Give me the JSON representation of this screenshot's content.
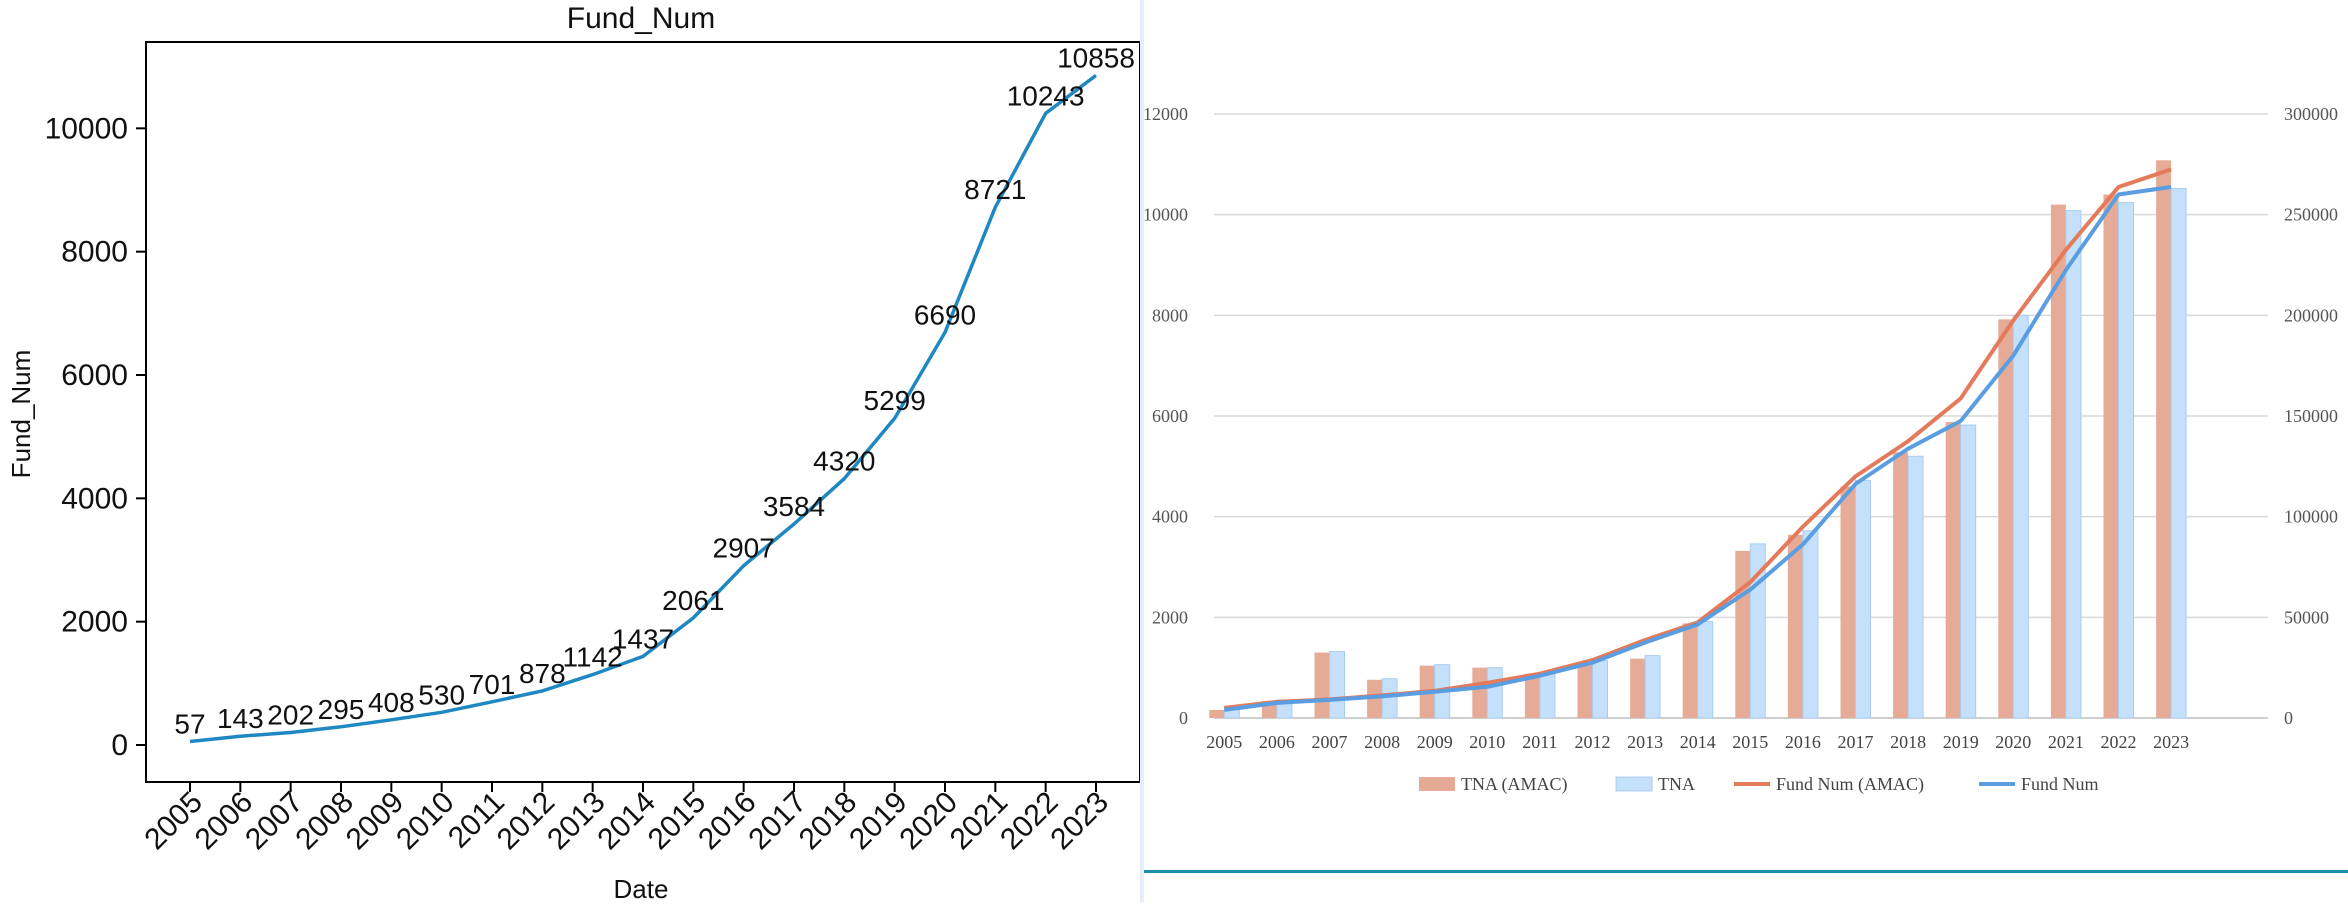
{
  "chart_data": [
    {
      "type": "line",
      "title": "Fund_Num",
      "xlabel": "Date",
      "ylabel": "Fund_Num",
      "categories": [
        "2005",
        "2006",
        "2007",
        "2008",
        "2009",
        "2010",
        "2011",
        "2012",
        "2013",
        "2014",
        "2015",
        "2016",
        "2017",
        "2018",
        "2019",
        "2020",
        "2021",
        "2022",
        "2023"
      ],
      "values": [
        57,
        143,
        202,
        295,
        408,
        530,
        701,
        878,
        1142,
        1437,
        2061,
        2907,
        3584,
        4320,
        5299,
        6690,
        8721,
        10243,
        10858
      ],
      "y_ticks": [
        0,
        2000,
        4000,
        6000,
        8000,
        10000
      ],
      "ylim": [
        -600,
        11400
      ],
      "line_color": "#1f88c2",
      "grid": false
    },
    {
      "type": "bar",
      "categories": [
        "2005",
        "2006",
        "2007",
        "2008",
        "2009",
        "2010",
        "2011",
        "2012",
        "2013",
        "2014",
        "2015",
        "2016",
        "2017",
        "2018",
        "2019",
        "2020",
        "2021",
        "2022",
        "2023"
      ],
      "bar_series": [
        {
          "name": "TNA (AMAC)",
          "color": "#e5ab97",
          "values": [
            4000,
            8500,
            32500,
            19000,
            26000,
            25000,
            22000,
            28000,
            29500,
            47000,
            83000,
            91000,
            115000,
            132000,
            147000,
            198000,
            255000,
            260000,
            277000
          ]
        },
        {
          "name": "TNA",
          "color": "#c5e0fa",
          "values": [
            4500,
            9000,
            33000,
            19500,
            26500,
            25000,
            22500,
            28500,
            31000,
            48000,
            86500,
            93000,
            118000,
            130000,
            145500,
            200000,
            252000,
            256000,
            263000
          ]
        }
      ],
      "line_series": [
        {
          "name": "Fund Num (AMAC)",
          "color": "#e47a5a",
          "values": [
            200,
            320,
            370,
            450,
            540,
            700,
            880,
            1150,
            1550,
            1900,
            2700,
            3800,
            4800,
            5500,
            6350,
            7900,
            9300,
            10550,
            10900
          ]
        },
        {
          "name": "Fund Num",
          "color": "#5a9de0",
          "values": [
            160,
            300,
            360,
            430,
            520,
            620,
            840,
            1100,
            1500,
            1860,
            2550,
            3450,
            4650,
            5350,
            5900,
            7200,
            8900,
            10400,
            10550
          ]
        }
      ],
      "y_left_ticks": [
        0,
        2000,
        4000,
        6000,
        8000,
        10000,
        12000
      ],
      "y_left_lim": [
        0,
        12000
      ],
      "y_right_ticks": [
        0,
        50000,
        100000,
        150000,
        200000,
        250000,
        300000
      ],
      "y_right_lim": [
        0,
        300000
      ],
      "legend_position": "bottom",
      "grid": true
    }
  ]
}
